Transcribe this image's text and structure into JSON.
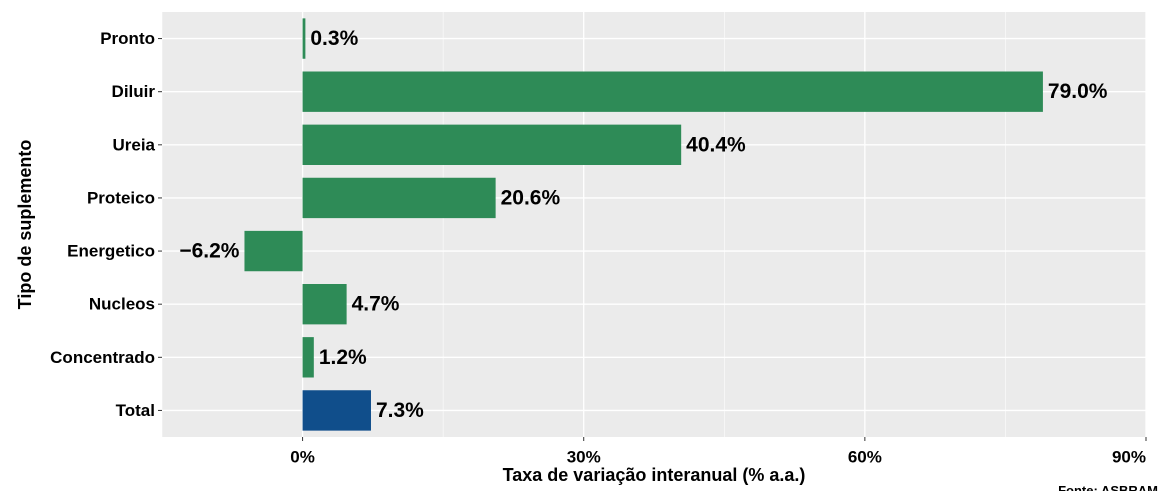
{
  "chart_data": {
    "type": "bar",
    "orientation": "horizontal",
    "title": "",
    "xlabel": "Taxa de variação interanual (% a.a.)",
    "ylabel": "Tipo de suplemento",
    "caption": "Fonte: ASBRAM",
    "x_ticks": [
      "0%",
      "30%",
      "60%",
      "90%"
    ],
    "x_tick_values": [
      0,
      30,
      60,
      90
    ],
    "xlim": [
      -15,
      90
    ],
    "grid": true,
    "legend": "none",
    "categories": [
      "Pronto",
      "Diluir",
      "Ureia",
      "Proteico",
      "Energetico",
      "Nucleos",
      "Concentrado",
      "Total"
    ],
    "values": [
      0.3,
      79.0,
      40.4,
      20.6,
      -6.2,
      4.7,
      1.2,
      7.3
    ],
    "labels": [
      "0.3%",
      "79.0%",
      "40.4%",
      "20.6%",
      "−6.2%",
      "4.7%",
      "1.2%",
      "7.3%"
    ],
    "colors": {
      "segment": "#2e8b57",
      "total": "#104e8b",
      "panel_background": "#ebebeb",
      "grid_major": "#ffffff"
    }
  }
}
